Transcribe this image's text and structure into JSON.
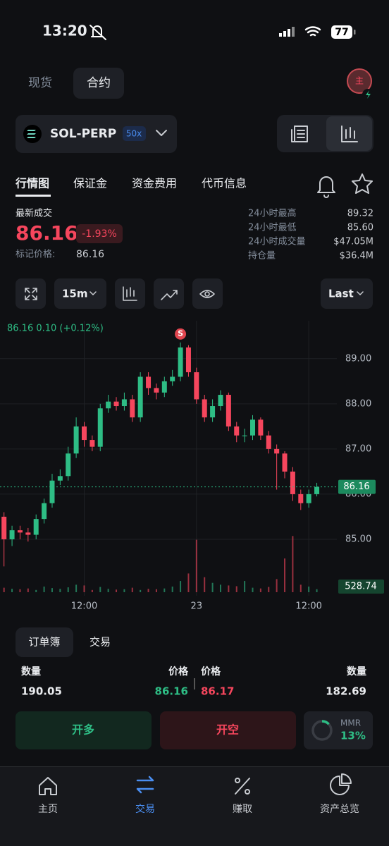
{
  "status_bar": {
    "time": "13:20",
    "battery": "77"
  },
  "top_tabs": [
    "现货",
    "合约"
  ],
  "avatar": "主",
  "symbol": {
    "name": "SOL-PERP",
    "leverage": "50x"
  },
  "section_tabs": [
    "行情图",
    "保证金",
    "资金费用",
    "代币信息"
  ],
  "ticker": {
    "last_label": "最新成交",
    "last_price": "86.16",
    "change": "-1.93%",
    "mark_label": "标记价格:",
    "mark_price": "86.16",
    "stats": [
      {
        "label": "24小时最高",
        "value": "89.32"
      },
      {
        "label": "24小时最低",
        "value": "85.60"
      },
      {
        "label": "24小时成交量",
        "value": "$47.05M"
      },
      {
        "label": "持仓量",
        "value": "$36.4M"
      }
    ]
  },
  "toolbar": {
    "interval": "15m",
    "price_type": "Last"
  },
  "chart_data": {
    "type": "candlestick",
    "legend_text": "86.16  0.10 (+0.12%)",
    "marker": "S",
    "up_color": "#2ebd85",
    "down_color": "#f6465d",
    "categories": [
      null,
      null,
      null,
      null,
      null,
      null,
      null,
      null,
      null,
      null,
      "12:00",
      null,
      null,
      null,
      null,
      null,
      null,
      null,
      null,
      null,
      null,
      null,
      null,
      null,
      "23",
      null,
      null,
      null,
      null,
      null,
      null,
      null,
      null,
      null,
      null,
      null,
      null,
      null,
      "12:00",
      null
    ],
    "open": [
      85.5,
      85.0,
      85.2,
      85.15,
      85.1,
      85.45,
      85.8,
      86.3,
      86.4,
      86.9,
      87.5,
      87.2,
      87.05,
      87.9,
      88.05,
      87.95,
      88.1,
      87.7,
      88.6,
      88.35,
      88.25,
      88.5,
      88.6,
      89.25,
      88.7,
      88.1,
      87.7,
      87.95,
      88.2,
      87.5,
      87.3,
      87.3,
      87.65,
      87.3,
      87.0,
      86.9,
      86.5,
      86.0,
      85.8,
      86.0
    ],
    "high": [
      85.6,
      85.3,
      85.3,
      85.25,
      85.55,
      85.9,
      86.45,
      86.55,
      87.05,
      87.7,
      87.6,
      87.3,
      88.0,
      88.2,
      88.15,
      88.25,
      88.2,
      88.7,
      88.7,
      88.45,
      88.6,
      88.75,
      89.36,
      89.3,
      88.8,
      88.2,
      88.1,
      88.3,
      88.25,
      87.6,
      87.45,
      87.75,
      87.7,
      87.4,
      87.1,
      86.95,
      86.6,
      86.1,
      86.1,
      86.25
    ],
    "low": [
      84.4,
      84.85,
      85.0,
      84.95,
      85.0,
      85.35,
      85.7,
      86.2,
      86.3,
      86.8,
      87.05,
      86.95,
      86.95,
      87.8,
      87.85,
      87.85,
      87.6,
      87.6,
      88.2,
      88.1,
      88.15,
      88.4,
      88.5,
      88.6,
      88.0,
      87.6,
      87.6,
      87.85,
      87.4,
      87.15,
      87.15,
      87.2,
      87.2,
      86.9,
      86.1,
      86.35,
      85.85,
      85.65,
      85.7,
      85.95
    ],
    "close": [
      85.0,
      85.2,
      85.15,
      85.1,
      85.45,
      85.8,
      86.3,
      86.4,
      86.9,
      87.5,
      87.2,
      87.05,
      87.9,
      88.05,
      87.95,
      88.1,
      87.7,
      88.6,
      88.35,
      88.25,
      88.5,
      88.6,
      89.25,
      88.7,
      88.1,
      87.7,
      87.95,
      88.2,
      87.5,
      87.3,
      87.3,
      87.65,
      87.3,
      87.0,
      86.9,
      86.5,
      86.0,
      85.8,
      86.0,
      86.16
    ],
    "volume": [
      120,
      90,
      80,
      100,
      60,
      150,
      110,
      90,
      130,
      200,
      180,
      60,
      140,
      90,
      70,
      80,
      120,
      60,
      90,
      80,
      100,
      150,
      300,
      500,
      1400,
      400,
      250,
      200,
      180,
      160,
      300,
      120,
      100,
      140,
      350,
      900,
      1500,
      200,
      150,
      80
    ],
    "volume_ylim": [
      0,
      1600
    ],
    "volume_label": "528.74",
    "ylim": [
      83.75,
      89.84
    ],
    "yticks": [
      {
        "value": 85,
        "label": "85.00"
      },
      {
        "value": 86,
        "label": "86.00"
      },
      {
        "value": 87,
        "label": "87.00"
      },
      {
        "value": 88,
        "label": "88.00"
      },
      {
        "value": 89,
        "label": "89.00"
      }
    ],
    "price_line": {
      "value": 86.16,
      "label": "86.16"
    },
    "grid": true
  },
  "order_book": {
    "tabs": [
      "订单簿",
      "交易"
    ],
    "headers": [
      "数量",
      "价格",
      "价格",
      "数量"
    ],
    "values": [
      "190.05",
      "86.16",
      "86.17",
      "182.69"
    ]
  },
  "actions": [
    "开多",
    "开空"
  ],
  "mmr": {
    "label": "MMR",
    "value": 13,
    "text": "13%"
  },
  "nav": [
    "主页",
    "交易",
    "赚取",
    "资产总览"
  ]
}
